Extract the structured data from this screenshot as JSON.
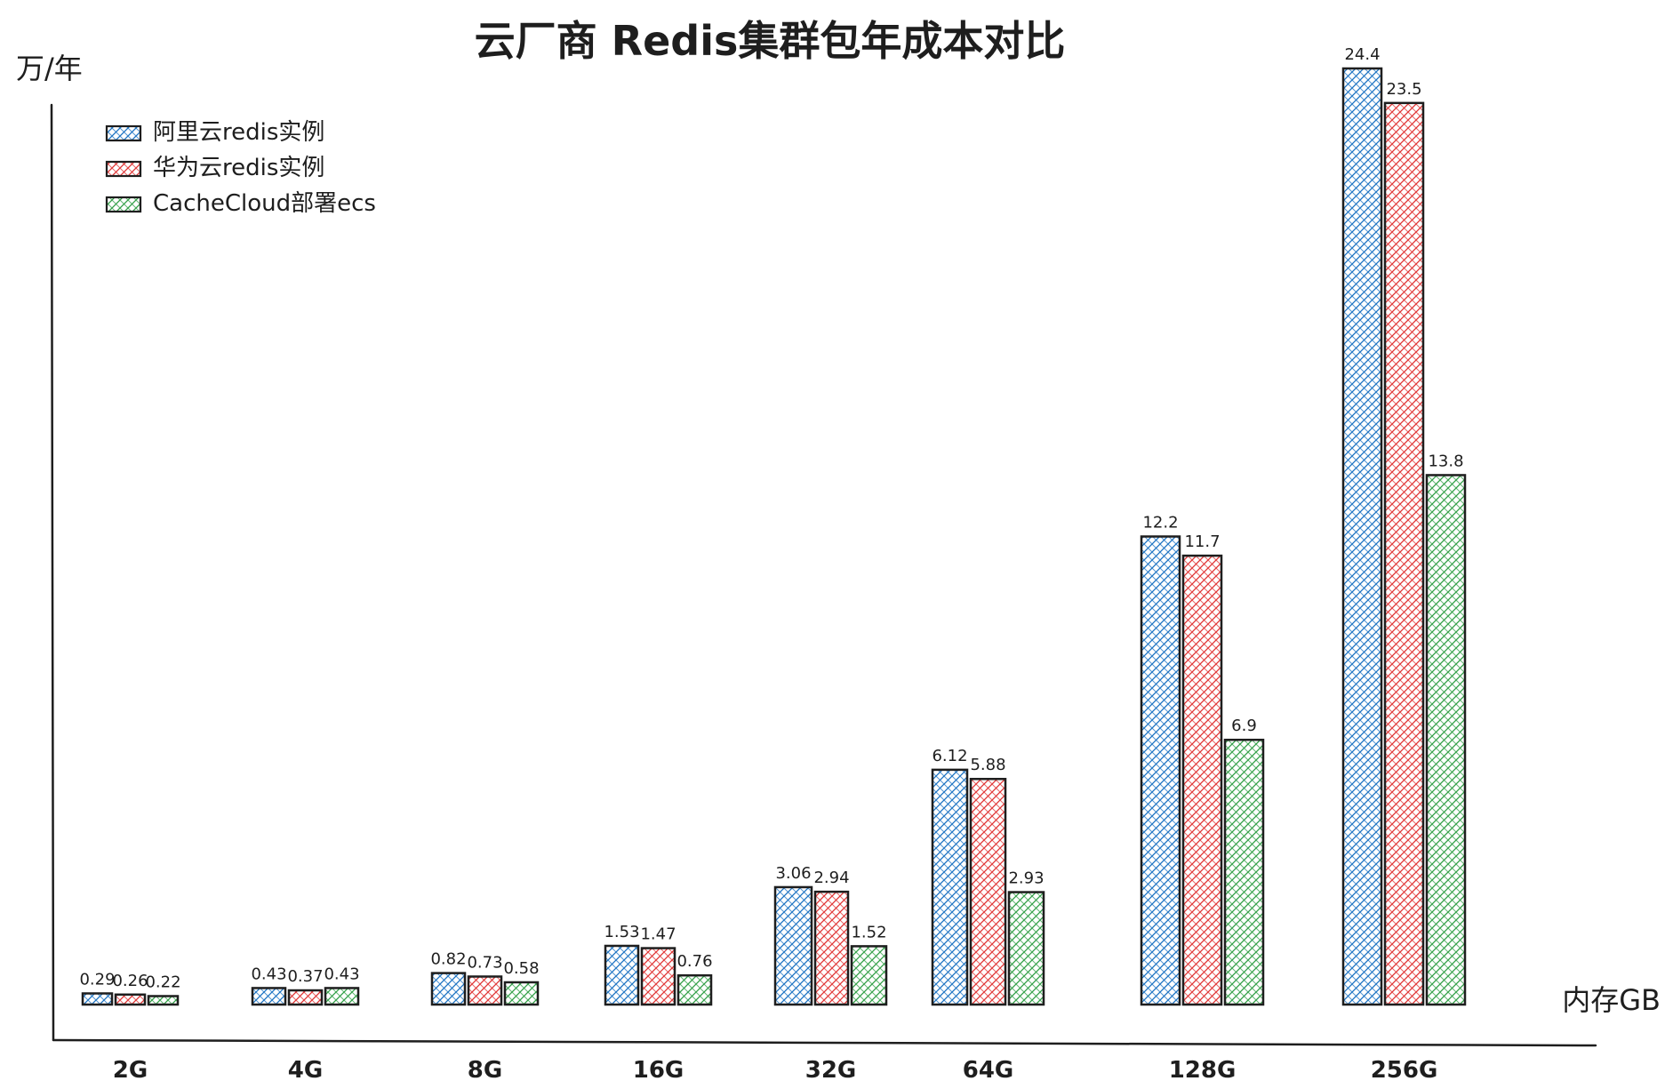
{
  "chart_data": {
    "type": "bar",
    "title": "云厂商 Redis集群包年成本对比",
    "ylabel": "万/年",
    "xlabel": "内存GB",
    "categories": [
      "2G",
      "4G",
      "8G",
      "16G",
      "32G",
      "64G",
      "128G",
      "256G"
    ],
    "series": [
      {
        "name": "阿里云redis实例",
        "color": "#1971c2",
        "values": [
          0.29,
          0.43,
          0.82,
          1.53,
          3.06,
          6.12,
          12.2,
          24.4
        ],
        "labels": [
          "0.29",
          "0.43",
          "0.82",
          "1.53",
          "3.06",
          "6.12",
          "12.2",
          "24.4"
        ]
      },
      {
        "name": "华为云redis实例",
        "color": "#e03131",
        "values": [
          0.26,
          0.37,
          0.73,
          1.47,
          2.94,
          5.88,
          11.7,
          23.5
        ],
        "labels": [
          "0.26",
          "0.37",
          "0.73",
          "1.47",
          "2.94",
          "5.88",
          "11.7",
          "23.5"
        ]
      },
      {
        "name": "CacheCloud部署ecs",
        "color": "#2f9e44",
        "values": [
          0.22,
          0.43,
          0.58,
          0.76,
          1.52,
          2.93,
          6.9,
          13.8
        ],
        "labels": [
          "0.22",
          "0.43",
          "0.58",
          "0.76",
          "1.52",
          "2.93",
          "6.9",
          "13.8"
        ]
      }
    ],
    "ylim": [
      0,
      25
    ],
    "grid": false,
    "legend_position": "top-left"
  }
}
